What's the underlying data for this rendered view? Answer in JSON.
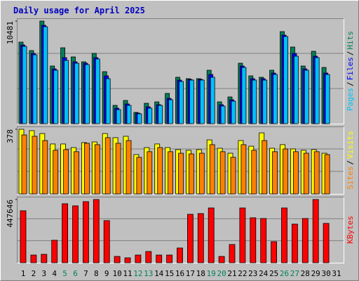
{
  "title": "Daily usage for April 2025",
  "separator": "/",
  "x_axis": {
    "categories": [
      "1",
      "2",
      "3",
      "4",
      "5",
      "6",
      "7",
      "8",
      "9",
      "10",
      "11",
      "12",
      "13",
      "14",
      "15",
      "16",
      "17",
      "18",
      "19",
      "20",
      "21",
      "22",
      "23",
      "24",
      "25",
      "26",
      "27",
      "28",
      "29",
      "30",
      "31"
    ],
    "weekend": [
      false,
      false,
      false,
      false,
      true,
      true,
      false,
      false,
      false,
      false,
      false,
      true,
      true,
      false,
      false,
      false,
      false,
      false,
      true,
      true,
      false,
      false,
      false,
      false,
      false,
      true,
      true,
      false,
      false,
      false,
      false
    ],
    "color": "#000000",
    "weekend_color": "#00805c"
  },
  "chart_data": [
    {
      "type": "bar",
      "ylim": [
        0,
        10481
      ],
      "yticks": [
        10481
      ],
      "series": [
        {
          "name": "Hits",
          "color": "#00805c",
          "values": [
            8328,
            7466,
            10481,
            5887,
            7753,
            6820,
            6318,
            7179,
            5312,
            1867,
            2369,
            1149,
            2082,
            2225,
            3087,
            4738,
            4595,
            4595,
            5456,
            2225,
            2728,
            6174,
            4882,
            4738,
            5456,
            9404,
            7825,
            5887,
            7394,
            5743,
            0
          ]
        },
        {
          "name": "Files",
          "color": "#0000ff",
          "values": [
            8040,
            7179,
            10051,
            5600,
            6748,
            6318,
            6174,
            6748,
            4882,
            1579,
            2010,
            1077,
            1723,
            1938,
            2584,
            4451,
            4523,
            4523,
            5025,
            1938,
            2441,
            5887,
            4595,
            4595,
            5169,
            9046,
            7179,
            5600,
            6892,
            5169,
            0
          ]
        },
        {
          "name": "Pages",
          "color": "#00c0ff",
          "values": [
            7897,
            7035,
            9907,
            5456,
            6461,
            6174,
            6030,
            6605,
            4595,
            1436,
            1867,
            1005,
            1579,
            1867,
            2441,
            4307,
            4451,
            4451,
            4738,
            1795,
            2297,
            5743,
            4451,
            4451,
            5025,
            8902,
            6892,
            5456,
            6748,
            5025,
            0
          ]
        }
      ]
    },
    {
      "type": "bar",
      "ylim": [
        0,
        378
      ],
      "yticks": [
        378
      ],
      "series": [
        {
          "name": "Visits",
          "color": "#ffff00",
          "values": [
            378,
            370,
            353,
            292,
            292,
            271,
            300,
            304,
            353,
            329,
            337,
            230,
            271,
            292,
            271,
            259,
            255,
            259,
            316,
            267,
            238,
            312,
            279,
            357,
            267,
            288,
            263,
            255,
            259,
            238,
            0
          ]
        },
        {
          "name": "Sites",
          "color": "#ff8000",
          "values": [
            345,
            337,
            312,
            255,
            259,
            247,
            296,
            288,
            329,
            296,
            312,
            214,
            247,
            271,
            247,
            238,
            234,
            238,
            288,
            247,
            214,
            288,
            255,
            312,
            247,
            263,
            247,
            238,
            247,
            230,
            0
          ]
        }
      ]
    },
    {
      "type": "bar",
      "ylim": [
        0,
        447646
      ],
      "yticks": [
        447646
      ],
      "series": [
        {
          "name": "KBytes",
          "color": "#ff0000",
          "values": [
            368061,
            54712,
            59686,
            159162,
            417799,
            402878,
            432721,
            447646,
            298428,
            44764,
            34817,
            54712,
            79581,
            54712,
            54712,
            104450,
            343192,
            348166,
            387956,
            44764,
            129319,
            387956,
            318323,
            313349,
            149214,
            387956,
            273559,
            313349,
            447646,
            278533,
            0
          ]
        }
      ]
    }
  ]
}
